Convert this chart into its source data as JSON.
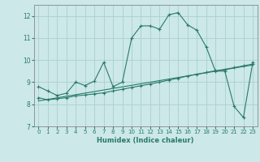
{
  "xlabel": "Humidex (Indice chaleur)",
  "bg_color": "#cce8e8",
  "grid_color": "#aacfcf",
  "line_color": "#2a7a6a",
  "xlim": [
    -0.5,
    23.5
  ],
  "ylim": [
    7.0,
    12.5
  ],
  "yticks": [
    7,
    8,
    9,
    10,
    11,
    12
  ],
  "xticks": [
    0,
    1,
    2,
    3,
    4,
    5,
    6,
    7,
    8,
    9,
    10,
    11,
    12,
    13,
    14,
    15,
    16,
    17,
    18,
    19,
    20,
    21,
    22,
    23
  ],
  "series1_x": [
    0,
    1,
    2,
    3,
    4,
    5,
    6,
    7,
    8,
    9,
    10,
    11,
    12,
    13,
    14,
    15,
    16,
    17,
    18,
    19,
    20,
    21,
    22,
    23
  ],
  "series1_y": [
    8.8,
    8.6,
    8.4,
    8.5,
    9.0,
    8.85,
    9.05,
    9.9,
    8.8,
    9.0,
    11.0,
    11.55,
    11.55,
    11.4,
    12.05,
    12.15,
    11.6,
    11.35,
    10.6,
    9.5,
    9.5,
    7.9,
    7.4,
    9.9
  ],
  "series2_x": [
    0,
    1,
    2,
    3,
    4,
    5,
    6,
    7,
    8,
    9,
    10,
    11,
    12,
    13,
    14,
    15,
    16,
    17,
    18,
    19,
    20,
    21,
    22,
    23
  ],
  "series2_y": [
    8.3,
    8.2,
    8.25,
    8.3,
    8.38,
    8.42,
    8.47,
    8.52,
    8.6,
    8.68,
    8.76,
    8.84,
    8.92,
    9.0,
    9.1,
    9.18,
    9.28,
    9.36,
    9.44,
    9.52,
    9.58,
    9.66,
    9.74,
    9.82
  ],
  "series3_x": [
    0,
    23
  ],
  "series3_y": [
    8.15,
    9.78
  ]
}
